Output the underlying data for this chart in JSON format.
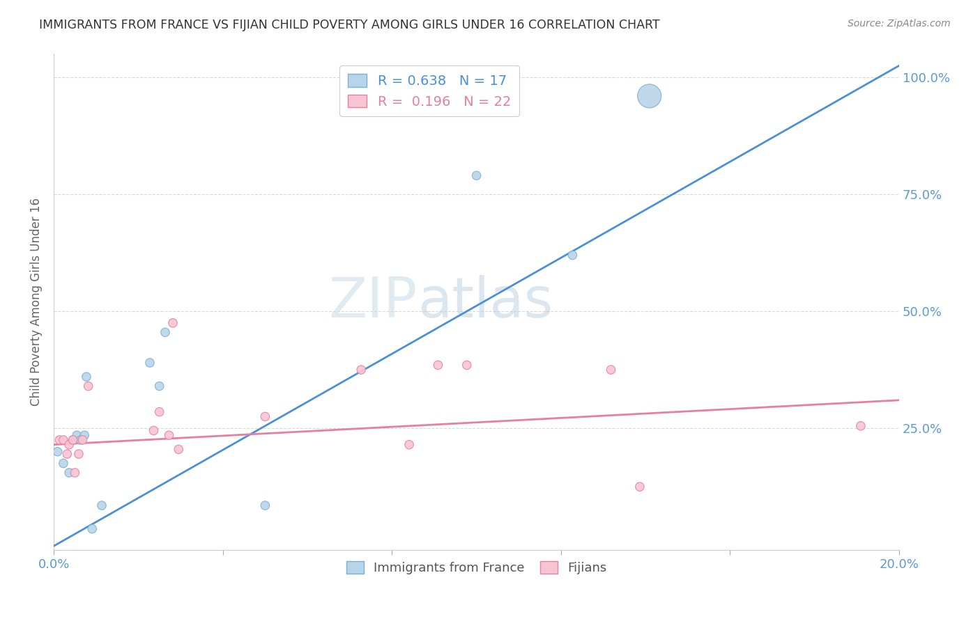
{
  "title": "IMMIGRANTS FROM FRANCE VS FIJIAN CHILD POVERTY AMONG GIRLS UNDER 16 CORRELATION CHART",
  "source": "Source: ZipAtlas.com",
  "ylabel": "Child Poverty Among Girls Under 16",
  "right_yticks": [
    "100.0%",
    "75.0%",
    "50.0%",
    "25.0%"
  ],
  "right_ytick_vals": [
    1.0,
    0.75,
    0.5,
    0.25
  ],
  "legend_blue_label": "Immigrants from France",
  "legend_pink_label": "Fijians",
  "r_blue": 0.638,
  "n_blue": 17,
  "r_pink": 0.196,
  "n_pink": 22,
  "blue_fill": "#b8d4ea",
  "blue_edge": "#7aafd4",
  "pink_fill": "#f7c5d2",
  "pink_edge": "#e87fa0",
  "blue_line_color": "#4a90d9",
  "pink_line_color": "#e87fa0",
  "title_color": "#333333",
  "axis_tick_color": "#5b9bd5",
  "watermark1": "ZIP",
  "watermark2": "atlas",
  "blue_scatter_x": [
    0.0002,
    0.0005,
    0.0008,
    0.001,
    0.0012,
    0.0014,
    0.0016,
    0.0017,
    0.002,
    0.0025,
    0.005,
    0.0055,
    0.0058,
    0.011,
    0.022,
    0.027,
    0.031
  ],
  "blue_scatter_y": [
    0.2,
    0.175,
    0.155,
    0.225,
    0.235,
    0.225,
    0.235,
    0.36,
    0.035,
    0.085,
    0.39,
    0.34,
    0.455,
    0.085,
    0.79,
    0.62,
    0.96
  ],
  "blue_scatter_size": [
    80,
    80,
    80,
    80,
    80,
    80,
    80,
    80,
    80,
    80,
    80,
    80,
    80,
    80,
    80,
    80,
    600
  ],
  "pink_scatter_x": [
    0.0003,
    0.0005,
    0.0007,
    0.0008,
    0.001,
    0.0011,
    0.0013,
    0.0015,
    0.0018,
    0.0052,
    0.0055,
    0.006,
    0.0062,
    0.0065,
    0.011,
    0.016,
    0.0185,
    0.02,
    0.0215,
    0.029,
    0.0305,
    0.042
  ],
  "pink_scatter_y": [
    0.225,
    0.225,
    0.195,
    0.215,
    0.225,
    0.155,
    0.195,
    0.225,
    0.34,
    0.245,
    0.285,
    0.235,
    0.475,
    0.205,
    0.275,
    0.375,
    0.215,
    0.385,
    0.385,
    0.375,
    0.125,
    0.255
  ],
  "pink_scatter_size": [
    80,
    80,
    80,
    80,
    80,
    80,
    80,
    80,
    80,
    80,
    80,
    80,
    80,
    80,
    80,
    80,
    80,
    80,
    80,
    80,
    80,
    80
  ],
  "blue_line_x": [
    -0.001,
    0.044
  ],
  "blue_line_y": [
    -0.025,
    1.025
  ],
  "pink_line_x": [
    0.0,
    0.044
  ],
  "pink_line_y": [
    0.215,
    0.31
  ],
  "xlim": [
    0.0,
    0.044
  ],
  "ylim": [
    -0.01,
    1.05
  ],
  "xtick_vals": [
    0.0,
    0.0088,
    0.0176,
    0.0264,
    0.0352,
    0.044
  ],
  "xtick_labels": [
    "0.0%",
    "",
    "",
    "",
    "",
    "20.0%"
  ],
  "ytick_vals": [
    0.25,
    0.5,
    0.75,
    1.0
  ],
  "grid_color": "#d0d0d0",
  "background_color": "#ffffff",
  "figsize": [
    14.06,
    8.92
  ]
}
